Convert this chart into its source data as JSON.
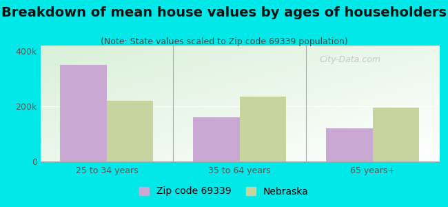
{
  "title": "Breakdown of mean house values by ages of householders",
  "subtitle": "(Note: State values scaled to Zip code 69339 population)",
  "categories": [
    "25 to 34 years",
    "35 to 64 years",
    "65 years+"
  ],
  "zip_values": [
    350000,
    160000,
    120000
  ],
  "state_values": [
    220000,
    235000,
    195000
  ],
  "zip_color": "#c9a8d4",
  "state_color": "#c8d4a0",
  "background_color": "#00e8e8",
  "ylim": [
    0,
    420000
  ],
  "yticks": [
    0,
    200000,
    400000
  ],
  "ytick_labels": [
    "0",
    "200k",
    "400k"
  ],
  "legend_labels": [
    "Zip code 69339",
    "Nebraska"
  ],
  "bar_width": 0.35,
  "title_fontsize": 14,
  "subtitle_fontsize": 9,
  "tick_fontsize": 9,
  "legend_fontsize": 10,
  "watermark_text": "City-Data.com",
  "watermark_color": "#c0c0c0",
  "title_color": "#111111",
  "subtitle_color": "#444444",
  "tick_color": "#555555"
}
